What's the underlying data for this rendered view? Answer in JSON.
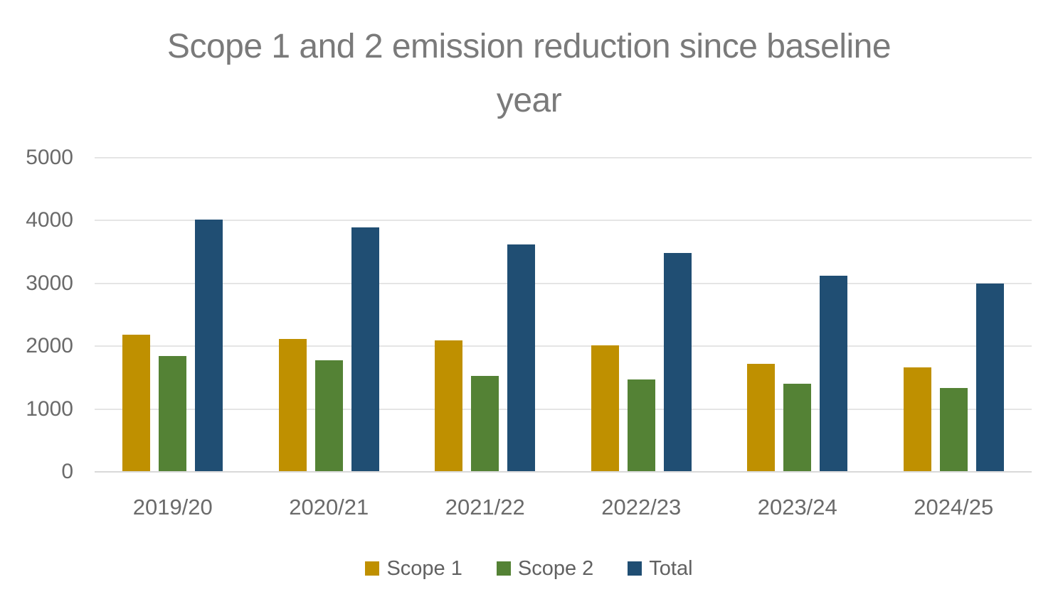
{
  "title": {
    "line1": "Scope 1 and 2 emission reduction since baseline",
    "line2": "year"
  },
  "colors": {
    "scope1": "#BF9000",
    "scope2": "#548235",
    "total": "#204E73",
    "title_text": "#7a7a7a",
    "axis_text": "#6a6a6a",
    "gridline": "#e5e5e5",
    "baseline": "#d9d9d9"
  },
  "chart_data": {
    "type": "bar",
    "title": "Scope 1 and 2 emission reduction since baseline year",
    "categories": [
      "2019/20",
      "2020/21",
      "2021/22",
      "2022/23",
      "2023/24",
      "2024/25"
    ],
    "series": [
      {
        "name": "Scope 1",
        "color": "#BF9000",
        "values": [
          2180,
          2110,
          2090,
          2010,
          1720,
          1660
        ]
      },
      {
        "name": "Scope 2",
        "color": "#548235",
        "values": [
          1840,
          1780,
          1530,
          1470,
          1400,
          1340
        ]
      },
      {
        "name": "Total",
        "color": "#204E73",
        "values": [
          4020,
          3890,
          3620,
          3480,
          3120,
          3000
        ]
      }
    ],
    "xlabel": "",
    "ylabel": "",
    "ylim": [
      0,
      5000
    ],
    "yticks": [
      0,
      1000,
      2000,
      3000,
      4000,
      5000
    ],
    "grid": "horizontal",
    "legend_position": "bottom"
  }
}
